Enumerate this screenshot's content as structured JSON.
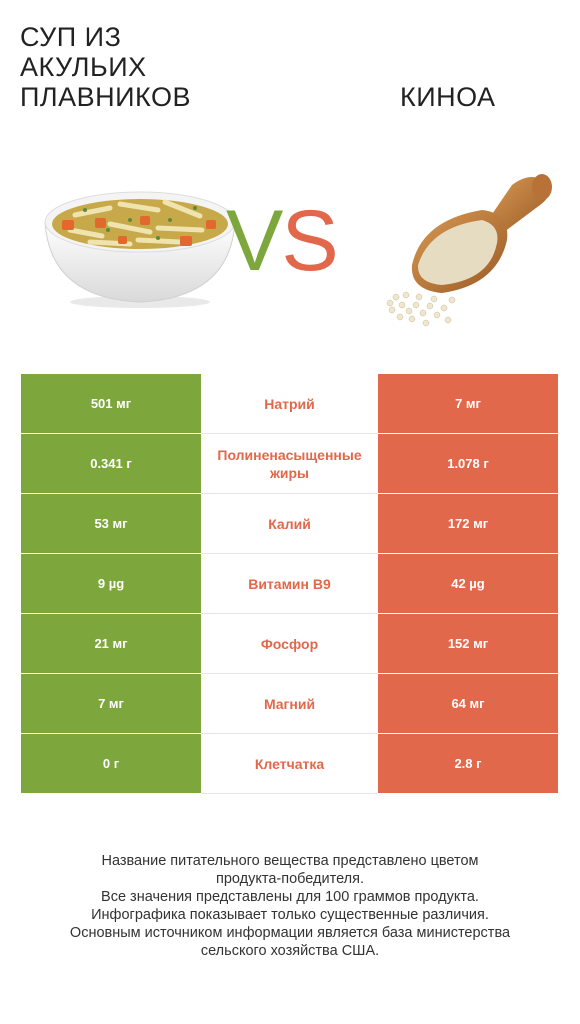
{
  "header": {
    "left_title": "СУП ИЗ\nАКУЛЬИХ\nПЛАВНИКОВ",
    "right_title": "КИНОА",
    "vs_v": "V",
    "vs_s": "S"
  },
  "colors": {
    "left_accent": "#7da73c",
    "right_accent": "#e2684b"
  },
  "comparison": {
    "rows": [
      {
        "left": "501 мг",
        "nutrient": "Натрий",
        "right": "7 мг"
      },
      {
        "left": "0.341 г",
        "nutrient": "Полиненасыщенные жиры",
        "right": "1.078 г"
      },
      {
        "left": "53 мг",
        "nutrient": "Калий",
        "right": "172 мг"
      },
      {
        "left": "9 µg",
        "nutrient": "Витамин B9",
        "right": "42 µg"
      },
      {
        "left": "21 мг",
        "nutrient": "Фосфор",
        "right": "152 мг"
      },
      {
        "left": "7 мг",
        "nutrient": "Магний",
        "right": "64 мг"
      },
      {
        "left": "0 г",
        "nutrient": "Клетчатка",
        "right": "2.8 г"
      }
    ]
  },
  "footer": {
    "line1": "Название питательного вещества представлено цветом",
    "line2": "продукта-победителя.",
    "line3": "Все значения представлены для 100 граммов продукта.",
    "line4": "Инфографика показывает только существенные различия.",
    "line5": "Основным источником информации является база министерства",
    "line6": "сельского хозяйства США."
  }
}
